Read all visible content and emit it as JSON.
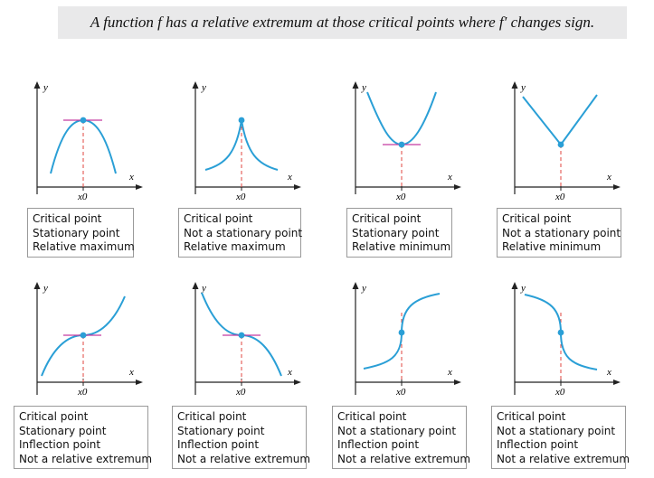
{
  "title": "A function f has a relative extremum at those critical points where f′ changes sign.",
  "colors": {
    "curve": "#2a9fd6",
    "tangent": "#c33aa1",
    "dashed": "#e2463f",
    "axis": "#222222",
    "box_border": "#9a9a9a",
    "banner_bg": "#e9e9ea"
  },
  "axis_labels": {
    "x": "x",
    "y": "y",
    "x0": "x0"
  },
  "panels": [
    {
      "id": "1",
      "lines": [
        "Critical point",
        "Stationary point",
        "Relative maximum"
      ]
    },
    {
      "id": "2",
      "lines": [
        "Critical point",
        "Not a stationary point",
        "Relative maximum"
      ]
    },
    {
      "id": "3",
      "lines": [
        "Critical point",
        "Stationary point",
        "Relative minimum"
      ]
    },
    {
      "id": "4",
      "lines": [
        "Critical point",
        "Not a stationary point",
        "Relative minimum"
      ]
    },
    {
      "id": "5",
      "lines": [
        "Critical point",
        "Stationary point",
        "Inflection point",
        "Not a relative extremum"
      ]
    },
    {
      "id": "6",
      "lines": [
        "Critical point",
        "Stationary point",
        "Inflection point",
        "Not a relative extremum"
      ]
    },
    {
      "id": "7",
      "lines": [
        "Critical point",
        "Not a stationary point",
        "Inflection point",
        "Not a relative extremum"
      ]
    },
    {
      "id": "8",
      "lines": [
        "Critical point",
        "Not a stationary point",
        "Inflection point",
        "Not a relative extremum"
      ]
    }
  ]
}
